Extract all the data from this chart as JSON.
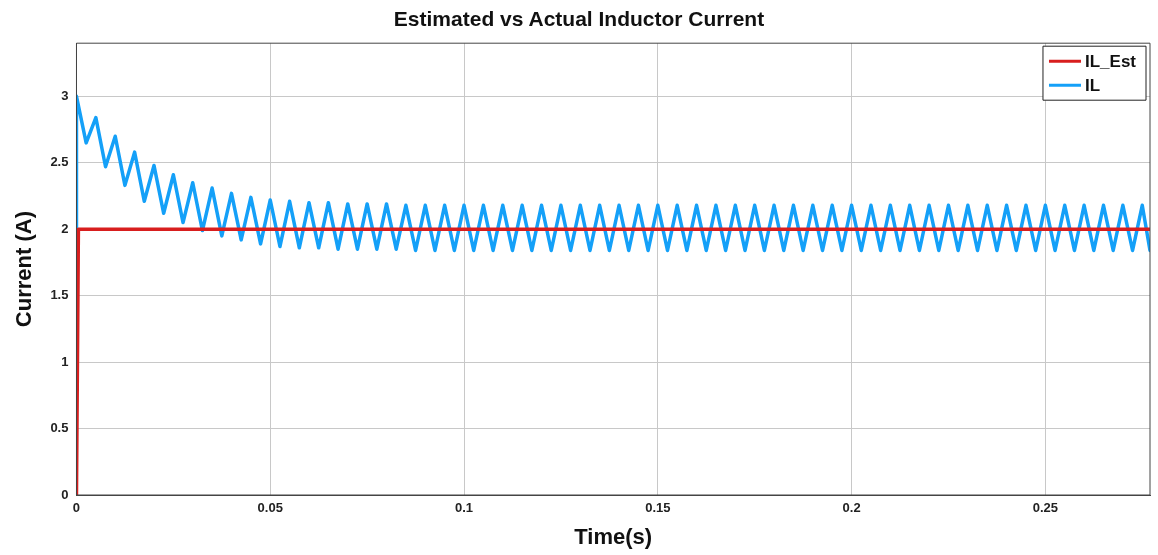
{
  "chart_data": {
    "type": "line",
    "title": "Estimated vs Actual Inductor Current",
    "xlabel": "Time(s)",
    "ylabel": "Current (A)",
    "xlim": [
      0,
      0.277
    ],
    "xticks": [
      0,
      0.05,
      0.1,
      0.15,
      0.2,
      0.25
    ],
    "ylim": [
      0,
      3.4
    ],
    "yticks": [
      0,
      0.5,
      1,
      1.5,
      2,
      2.5,
      3
    ],
    "grid": true,
    "legend": "top right",
    "line_style": "solid",
    "series": [
      {
        "name": "IL_Est",
        "color": "#d81e1e",
        "x": [
          0,
          0.0005,
          0.277
        ],
        "values": [
          0,
          2,
          2
        ]
      },
      {
        "name": "IL",
        "color": "#14a0f8",
        "x": [
          0,
          0,
          0.0025,
          0.005,
          0.0075,
          0.01,
          0.0125,
          0.015,
          0.0175,
          0.02,
          0.0225,
          0.025,
          0.0275,
          0.03,
          0.0325,
          0.035,
          0.0375,
          0.04,
          0.0425,
          0.045,
          0.0475,
          0.05,
          0.0525,
          0.055,
          0.0575,
          0.06,
          0.0625,
          0.065,
          0.0675,
          0.07,
          0.0725,
          0.075,
          0.0775,
          0.08,
          0.0825,
          0.085,
          0.0875,
          0.09,
          0.0925,
          0.095,
          0.0975,
          0.1,
          0.1025,
          0.105,
          0.1075,
          0.11,
          0.1125,
          0.115,
          0.1175,
          0.12,
          0.1225,
          0.125,
          0.1275,
          0.13,
          0.1325,
          0.135,
          0.1375,
          0.14,
          0.1425,
          0.145,
          0.1475,
          0.15,
          0.1525,
          0.155,
          0.1575,
          0.16,
          0.1625,
          0.165,
          0.1675,
          0.17,
          0.1725,
          0.175,
          0.1775,
          0.18,
          0.1825,
          0.185,
          0.1875,
          0.19,
          0.1925,
          0.195,
          0.1975,
          0.2,
          0.2025,
          0.205,
          0.2075,
          0.21,
          0.2125,
          0.215,
          0.2175,
          0.22,
          0.2225,
          0.225,
          0.2275,
          0.23,
          0.2325,
          0.235,
          0.2375,
          0.24,
          0.2425,
          0.245,
          0.2475,
          0.25,
          0.2525,
          0.255,
          0.2575,
          0.26,
          0.2625,
          0.265,
          0.2675,
          0.27,
          0.2725,
          0.275,
          0.277
        ],
        "values": [
          2,
          3.0,
          2.65,
          2.84,
          2.47,
          2.7,
          2.33,
          2.58,
          2.21,
          2.48,
          2.12,
          2.41,
          2.05,
          2.35,
          1.99,
          2.31,
          1.95,
          2.27,
          1.92,
          2.24,
          1.89,
          2.22,
          1.87,
          2.21,
          1.86,
          2.2,
          1.86,
          2.2,
          1.85,
          2.19,
          1.85,
          2.19,
          1.85,
          2.19,
          1.85,
          2.18,
          1.84,
          2.18,
          1.84,
          2.18,
          1.84,
          2.18,
          1.84,
          2.18,
          1.84,
          2.18,
          1.84,
          2.18,
          1.84,
          2.18,
          1.84,
          2.18,
          1.84,
          2.18,
          1.84,
          2.18,
          1.84,
          2.18,
          1.84,
          2.18,
          1.84,
          2.18,
          1.84,
          2.18,
          1.84,
          2.18,
          1.84,
          2.18,
          1.84,
          2.18,
          1.84,
          2.18,
          1.84,
          2.18,
          1.84,
          2.18,
          1.84,
          2.18,
          1.84,
          2.18,
          1.84,
          2.18,
          1.84,
          2.18,
          1.84,
          2.18,
          1.84,
          2.18,
          1.84,
          2.18,
          1.84,
          2.18,
          1.84,
          2.18,
          1.84,
          2.18,
          1.84,
          2.18,
          1.84,
          2.18,
          1.84,
          2.18,
          1.84,
          2.18,
          1.84,
          2.18,
          1.84,
          2.18,
          1.84,
          2.18,
          1.84,
          2.18,
          1.84
        ]
      }
    ]
  }
}
